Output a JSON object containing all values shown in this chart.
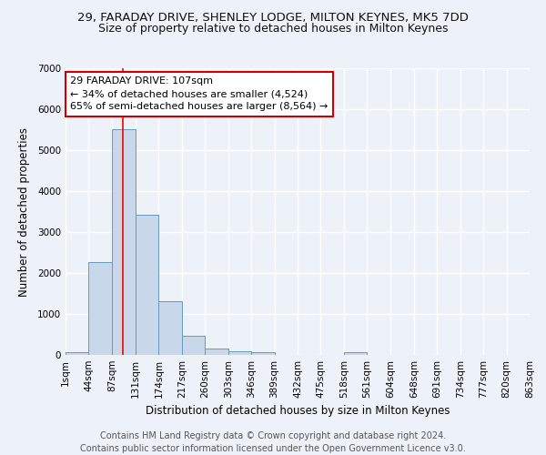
{
  "title": "29, FARADAY DRIVE, SHENLEY LODGE, MILTON KEYNES, MK5 7DD",
  "subtitle": "Size of property relative to detached houses in Milton Keynes",
  "xlabel": "Distribution of detached houses by size in Milton Keynes",
  "ylabel": "Number of detached properties",
  "footer1": "Contains HM Land Registry data © Crown copyright and database right 2024.",
  "footer2": "Contains public sector information licensed under the Open Government Licence v3.0.",
  "annotation_title": "29 FARADAY DRIVE: 107sqm",
  "annotation_line1": "← 34% of detached houses are smaller (4,524)",
  "annotation_line2": "65% of semi-detached houses are larger (8,564) →",
  "bar_color": "#c8d8ea",
  "bar_edge_color": "#6699bb",
  "redline_x": 107,
  "bin_edges": [
    1,
    44,
    87,
    131,
    174,
    217,
    260,
    303,
    346,
    389,
    432,
    475,
    518,
    561,
    604,
    648,
    691,
    734,
    777,
    820,
    863
  ],
  "bar_heights": [
    75,
    2275,
    5500,
    3430,
    1310,
    460,
    165,
    100,
    75,
    0,
    0,
    0,
    75,
    0,
    0,
    0,
    0,
    0,
    0,
    0
  ],
  "ylim": [
    0,
    7000
  ],
  "yticks": [
    0,
    1000,
    2000,
    3000,
    4000,
    5000,
    6000,
    7000
  ],
  "bg_color": "#edf2f8",
  "grid_color": "#ffffff",
  "annotation_box_color": "#ffffff",
  "annotation_box_edge": "#cc0000",
  "title_fontsize": 9.5,
  "subtitle_fontsize": 9,
  "axis_label_fontsize": 8.5,
  "tick_fontsize": 7.5,
  "footer_fontsize": 7,
  "annot_fontsize": 8
}
